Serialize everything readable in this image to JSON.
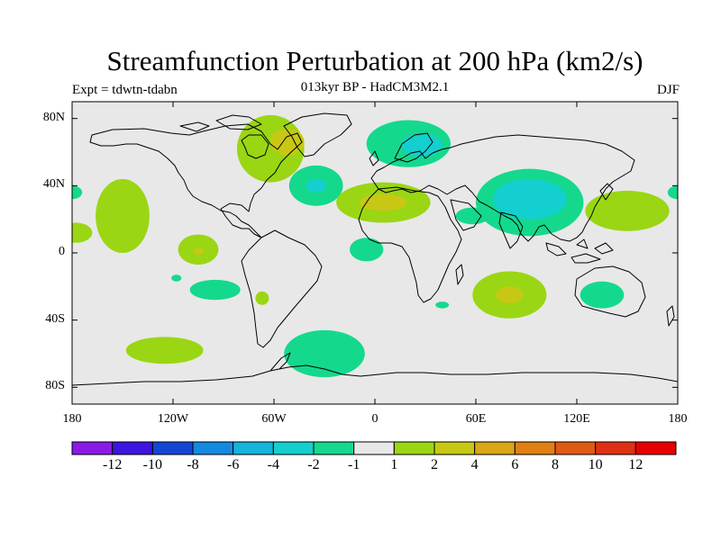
{
  "title": "Streamfunction Perturbation at 200 hPa (km2/s)",
  "subtitle": "013kyr BP - HadCM3M2.1",
  "experiment_label": "Expt = tdwtn-tdabn",
  "season_label": "DJF",
  "map": {
    "projection": "cylindrical-equidistant",
    "lon_range": [
      -180,
      180
    ],
    "lat_range": [
      -90,
      90
    ],
    "background_color": "#e8e8e8",
    "coastline_color": "#000000",
    "lat_ticks": [
      {
        "value": 80,
        "label": "80N"
      },
      {
        "value": 40,
        "label": "40N"
      },
      {
        "value": 0,
        "label": "0"
      },
      {
        "value": -40,
        "label": "40S"
      },
      {
        "value": -80,
        "label": "80S"
      }
    ],
    "lon_ticks": [
      {
        "value": -180,
        "label": "180"
      },
      {
        "value": -120,
        "label": "120W"
      },
      {
        "value": -60,
        "label": "60W"
      },
      {
        "value": 0,
        "label": "0"
      },
      {
        "value": 60,
        "label": "60E"
      },
      {
        "value": 120,
        "label": "120E"
      },
      {
        "value": 180,
        "label": "180"
      }
    ]
  },
  "colorbar": {
    "colors": [
      "#8a1ae6",
      "#3d14e0",
      "#1446d4",
      "#1489e0",
      "#14b4dc",
      "#14cfcf",
      "#14d98c",
      "#e8e8e8",
      "#9ad614",
      "#c8c814",
      "#d9a814",
      "#e08014",
      "#e05a14",
      "#e03014",
      "#e60000"
    ],
    "labels": [
      "-12",
      "-10",
      "-8",
      "-6",
      "-4",
      "-2",
      "-1",
      "1",
      "2",
      "4",
      "6",
      "8",
      "10",
      "12"
    ]
  },
  "anomalies": [
    {
      "region": "north-atlantic-canada",
      "color": "#9ad614",
      "lon": -62,
      "lat": 62,
      "rlon": 20,
      "rlat": 20
    },
    {
      "region": "north-atlantic-canada-core",
      "color": "#c8c814",
      "lon": -52,
      "lat": 66,
      "rlon": 10,
      "rlat": 8
    },
    {
      "region": "north-atlantic-mid",
      "color": "#14d98c",
      "lon": -35,
      "lat": 40,
      "rlon": 16,
      "rlat": 12
    },
    {
      "region": "north-atlantic-mid-core",
      "color": "#14cfcf",
      "lon": -35,
      "lat": 40,
      "rlon": 6,
      "rlat": 4
    },
    {
      "region": "scandinavia",
      "color": "#14d98c",
      "lon": 20,
      "lat": 65,
      "rlon": 25,
      "rlat": 14
    },
    {
      "region": "scandinavia-core",
      "color": "#14cfcf",
      "lon": 28,
      "lat": 64,
      "rlon": 12,
      "rlat": 7
    },
    {
      "region": "mediterranean-sahara",
      "color": "#9ad614",
      "lon": 5,
      "lat": 30,
      "rlon": 28,
      "rlat": 12
    },
    {
      "region": "mediterranean-sahara-core",
      "color": "#c8c814",
      "lon": 5,
      "lat": 30,
      "rlon": 14,
      "rlat": 5
    },
    {
      "region": "tibet-china",
      "color": "#14d98c",
      "lon": 92,
      "lat": 30,
      "rlon": 32,
      "rlat": 20
    },
    {
      "region": "tibet-china-core",
      "color": "#14cfcf",
      "lon": 92,
      "lat": 32,
      "rlon": 22,
      "rlat": 12
    },
    {
      "region": "arabia",
      "color": "#14d98c",
      "lon": 58,
      "lat": 22,
      "rlon": 10,
      "rlat": 5
    },
    {
      "region": "west-pacific",
      "color": "#9ad614",
      "lon": 150,
      "lat": 25,
      "rlon": 25,
      "rlat": 12
    },
    {
      "region": "date-line-east",
      "color": "#14d98c",
      "lon": 180,
      "lat": 36,
      "rlon": 6,
      "rlat": 4
    },
    {
      "region": "northeast-pacific",
      "color": "#9ad614",
      "lon": -150,
      "lat": 22,
      "rlon": 16,
      "rlat": 22
    },
    {
      "region": "date-line-west",
      "color": "#14d98c",
      "lon": -180,
      "lat": 36,
      "rlon": 6,
      "rlat": 4
    },
    {
      "region": "date-line-tropics",
      "color": "#9ad614",
      "lon": -178,
      "lat": 12,
      "rlon": 10,
      "rlat": 6
    },
    {
      "region": "east-pacific-tropics",
      "color": "#9ad614",
      "lon": -105,
      "lat": 2,
      "rlon": 12,
      "rlat": 9
    },
    {
      "region": "east-pacific-tropics-core",
      "color": "#c8c814",
      "lon": -105,
      "lat": 1,
      "rlon": 3,
      "rlat": 2
    },
    {
      "region": "southeast-pacific",
      "color": "#14d98c",
      "lon": -95,
      "lat": -22,
      "rlon": 15,
      "rlat": 6
    },
    {
      "region": "south-pacific-small",
      "color": "#14d98c",
      "lon": -118,
      "lat": -15,
      "rlon": 3,
      "rlat": 2
    },
    {
      "region": "south-america",
      "color": "#9ad614",
      "lon": -67,
      "lat": -27,
      "rlon": 4,
      "rlat": 4
    },
    {
      "region": "gulf-of-guinea",
      "color": "#14d98c",
      "lon": -5,
      "lat": 2,
      "rlon": 10,
      "rlat": 7
    },
    {
      "region": "indian-ocean",
      "color": "#9ad614",
      "lon": 80,
      "lat": -25,
      "rlon": 22,
      "rlat": 14
    },
    {
      "region": "indian-ocean-core",
      "color": "#c8c814",
      "lon": 80,
      "lat": -25,
      "rlon": 8,
      "rlat": 5
    },
    {
      "region": "australia-east",
      "color": "#14d98c",
      "lon": 135,
      "lat": -25,
      "rlon": 13,
      "rlat": 8
    },
    {
      "region": "south-africa",
      "color": "#14d98c",
      "lon": 40,
      "lat": -31,
      "rlon": 4,
      "rlat": 2
    },
    {
      "region": "southern-ocean-pacific",
      "color": "#9ad614",
      "lon": -125,
      "lat": -58,
      "rlon": 23,
      "rlat": 8
    },
    {
      "region": "southern-ocean-atlantic",
      "color": "#14d98c",
      "lon": -30,
      "lat": -60,
      "rlon": 24,
      "rlat": 14
    }
  ]
}
